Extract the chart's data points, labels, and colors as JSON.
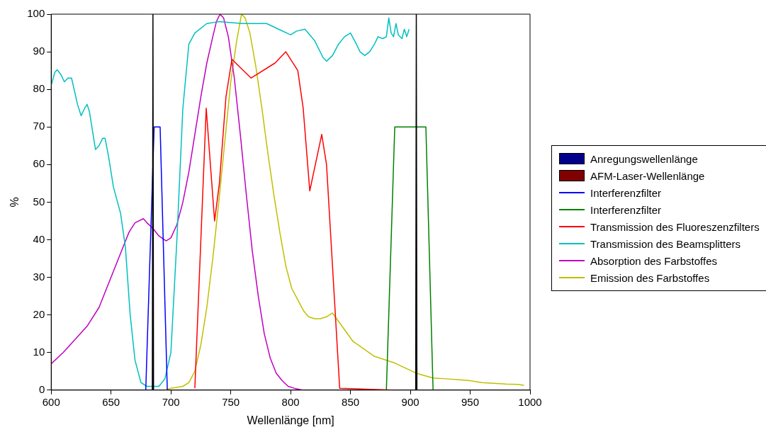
{
  "chart_data": {
    "type": "line",
    "xlabel": "Wellenlänge [nm]",
    "ylabel": "%",
    "xlim": [
      600,
      1000
    ],
    "xticks": [
      600,
      650,
      700,
      750,
      800,
      850,
      900,
      950,
      1000
    ],
    "ylim": [
      0,
      100
    ],
    "yticks": [
      0,
      10,
      20,
      30,
      40,
      50,
      60,
      70,
      80,
      90,
      100
    ],
    "grid": false,
    "legend": "right",
    "series": [
      {
        "name": "Anregungswellenlänge",
        "type": "area",
        "color": "#00008b",
        "x": [
          684.5,
          685,
          685.5
        ],
        "values": [
          0,
          100,
          0
        ]
      },
      {
        "name": "AFM-Laser-Wellenlänge",
        "type": "area",
        "color": "#800000",
        "x": [
          904.5,
          905,
          905.5
        ],
        "values": [
          0,
          100,
          0
        ]
      },
      {
        "name": "Interferenzfilter",
        "color": "#0000ff",
        "x": [
          679,
          686,
          691,
          697
        ],
        "values": [
          0,
          70,
          70,
          0
        ]
      },
      {
        "name": "Interferenzfilter",
        "color": "#008000",
        "x": [
          880,
          887,
          913,
          919
        ],
        "values": [
          0,
          70,
          70,
          0
        ]
      },
      {
        "name": "Transmission des Fluoreszenzfilters",
        "color": "#ff0000",
        "x": [
          720,
          729.5,
          736.5,
          740.5,
          746,
          751,
          767,
          787,
          796,
          806,
          810.5,
          816,
          826,
          830,
          841,
          885
        ],
        "values": [
          0.5,
          75,
          45,
          55,
          78,
          88,
          83,
          87,
          90,
          85,
          75,
          53,
          68,
          60,
          0.5,
          0
        ]
      },
      {
        "name": "Transmission des Beamsplitters",
        "color": "#00bfbf",
        "x": [
          600,
          603,
          605,
          608,
          611,
          614,
          617,
          622,
          625,
          628,
          630,
          632,
          637,
          640,
          643,
          645,
          648,
          652,
          658,
          662,
          666,
          670,
          675,
          680,
          690,
          695,
          700,
          705,
          710,
          715,
          720,
          730,
          740,
          760,
          780,
          790,
          800,
          805,
          812,
          820,
          827,
          830,
          835,
          840,
          845,
          850,
          855,
          858,
          862,
          866,
          870,
          873,
          877,
          880,
          882,
          884,
          886,
          888,
          890,
          893,
          895,
          897,
          899
        ],
        "values": [
          81,
          84.5,
          85.2,
          84,
          82,
          83,
          83,
          76,
          73,
          75,
          76,
          74,
          64,
          65,
          67,
          67,
          62,
          54,
          47,
          38,
          20,
          8,
          2,
          1,
          1,
          3,
          10,
          40,
          75,
          92,
          95,
          97.5,
          98,
          97.5,
          97.5,
          96,
          94.5,
          95.5,
          96,
          93,
          88.5,
          87.5,
          89,
          92,
          94,
          95,
          92,
          90,
          89,
          90,
          92,
          94,
          93.5,
          94,
          99,
          95,
          94,
          97.5,
          94.5,
          93.5,
          96,
          94,
          96
        ]
      },
      {
        "name": "Absorption des Farbstoffes",
        "color": "#bf00bf",
        "x": [
          600,
          610,
          620,
          630,
          640,
          650,
          660,
          665,
          670,
          677,
          680,
          685,
          690,
          696,
          700,
          705,
          710,
          715,
          720,
          725,
          730,
          735,
          738,
          741,
          744,
          748,
          753,
          758,
          763,
          768,
          773,
          778,
          783,
          788,
          793,
          798,
          803,
          810
        ],
        "values": [
          7,
          10,
          13.5,
          17,
          22,
          30,
          38,
          42,
          44.5,
          45.6,
          44.5,
          43,
          41,
          39.7,
          40.5,
          44,
          50,
          58,
          68,
          78,
          87,
          94,
          98,
          100,
          99,
          94,
          83,
          68,
          52,
          37,
          25,
          15,
          8.5,
          4.5,
          2.5,
          1,
          0.5,
          0
        ]
      },
      {
        "name": "Emission des Farbstoffes",
        "color": "#bfbf00",
        "x": [
          695,
          700,
          710,
          715,
          720,
          725,
          730,
          735,
          740,
          745,
          750,
          755,
          759,
          762,
          766,
          771,
          776,
          781,
          786,
          791,
          796,
          801,
          806,
          811,
          815,
          820,
          825,
          830,
          835,
          852,
          870,
          887,
          905,
          919,
          930,
          940,
          950,
          960,
          970,
          980,
          990,
          995
        ],
        "values": [
          0,
          0.5,
          1,
          2,
          5,
          12,
          22,
          35,
          50,
          66,
          82,
          93,
          100,
          99,
          95,
          86,
          75,
          63,
          52,
          42,
          33,
          27,
          24,
          21,
          19.5,
          19,
          19,
          19.5,
          20.5,
          13,
          9,
          7.2,
          4.5,
          3.2,
          3,
          2.8,
          2.5,
          2,
          1.8,
          1.6,
          1.5,
          1.3
        ]
      }
    ]
  }
}
